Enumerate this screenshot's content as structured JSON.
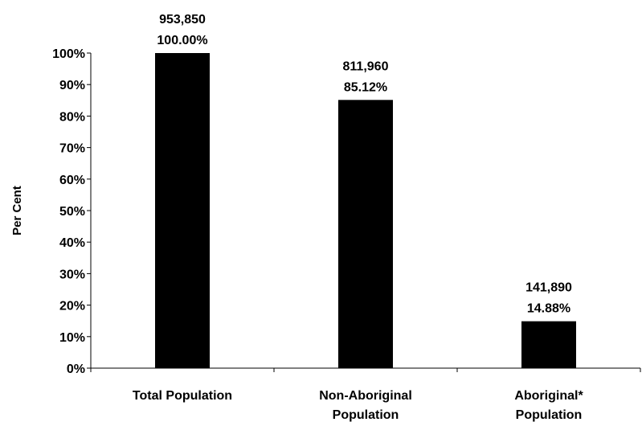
{
  "chart_data": {
    "type": "bar",
    "categories": [
      [
        "Total Population"
      ],
      [
        "Non-Aboriginal",
        "Population"
      ],
      [
        "Aboriginal*",
        "Population"
      ]
    ],
    "values": [
      100.0,
      85.12,
      14.88
    ],
    "value_labels": [
      "100.00%",
      "85.12%",
      "14.88%"
    ],
    "count_labels": [
      "953,850",
      "811,960",
      "141,890"
    ],
    "ylabel": "Per Cent",
    "ylim": [
      0,
      100
    ],
    "yticks": [
      "0%",
      "10%",
      "20%",
      "30%",
      "40%",
      "50%",
      "60%",
      "70%",
      "80%",
      "90%",
      "100%"
    ],
    "bar_color": "#000000",
    "grid": false
  }
}
